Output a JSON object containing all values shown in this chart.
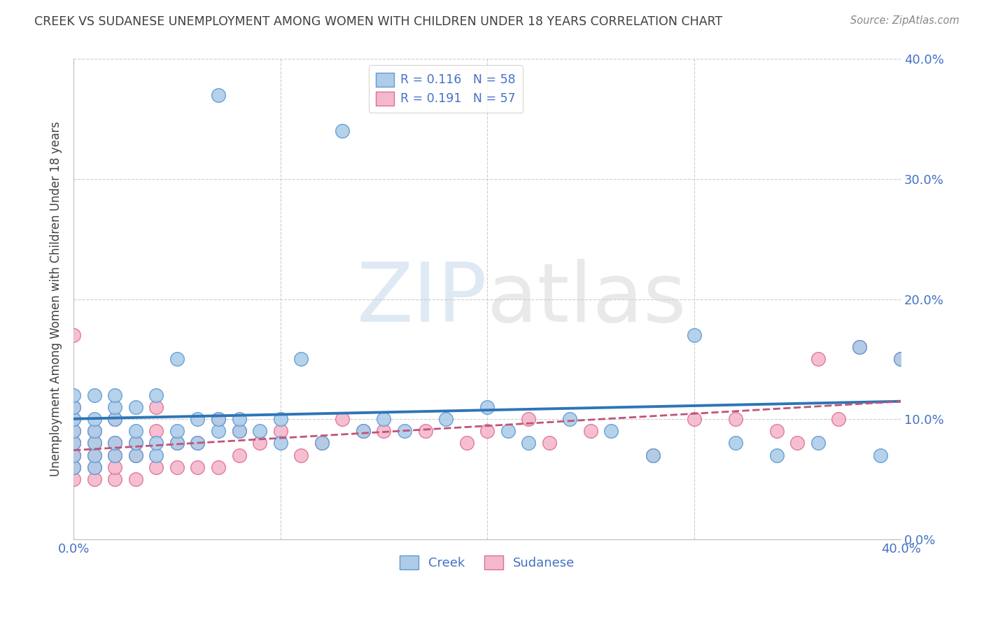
{
  "title": "CREEK VS SUDANESE UNEMPLOYMENT AMONG WOMEN WITH CHILDREN UNDER 18 YEARS CORRELATION CHART",
  "source": "Source: ZipAtlas.com",
  "ylabel": "Unemployment Among Women with Children Under 18 years",
  "xmin": 0.0,
  "xmax": 0.4,
  "ymin": 0.0,
  "ymax": 0.4,
  "xtick_positions": [
    0.0,
    0.4
  ],
  "xtick_labels": [
    "0.0%",
    "40.0%"
  ],
  "ytick_positions": [
    0.0,
    0.1,
    0.2,
    0.3,
    0.4
  ],
  "ytick_labels": [
    "0.0%",
    "10.0%",
    "20.0%",
    "30.0%",
    "40.0%"
  ],
  "creek_R": 0.116,
  "creek_N": 58,
  "sudanese_R": 0.191,
  "sudanese_N": 57,
  "creek_color": "#aecce8",
  "creek_edge_color": "#5b9bd5",
  "creek_line_color": "#2e75b6",
  "sudanese_color": "#f4b8cc",
  "sudanese_edge_color": "#e07090",
  "sudanese_line_color": "#c0547a",
  "background_color": "#ffffff",
  "grid_color": "#cccccc",
  "title_color": "#404040",
  "axis_label_color": "#404040",
  "tick_color": "#4472c4",
  "creek_x": [
    0.0,
    0.0,
    0.0,
    0.0,
    0.0,
    0.0,
    0.0,
    0.01,
    0.01,
    0.01,
    0.01,
    0.01,
    0.01,
    0.02,
    0.02,
    0.02,
    0.02,
    0.02,
    0.03,
    0.03,
    0.03,
    0.03,
    0.04,
    0.04,
    0.04,
    0.05,
    0.05,
    0.05,
    0.06,
    0.06,
    0.07,
    0.07,
    0.07,
    0.08,
    0.08,
    0.09,
    0.1,
    0.1,
    0.11,
    0.12,
    0.13,
    0.14,
    0.15,
    0.16,
    0.18,
    0.2,
    0.21,
    0.22,
    0.24,
    0.26,
    0.28,
    0.3,
    0.32,
    0.34,
    0.36,
    0.38,
    0.39,
    0.4
  ],
  "creek_y": [
    0.06,
    0.07,
    0.08,
    0.09,
    0.1,
    0.11,
    0.12,
    0.06,
    0.07,
    0.08,
    0.09,
    0.1,
    0.12,
    0.07,
    0.08,
    0.1,
    0.11,
    0.12,
    0.07,
    0.08,
    0.09,
    0.11,
    0.07,
    0.08,
    0.12,
    0.08,
    0.09,
    0.15,
    0.08,
    0.1,
    0.09,
    0.1,
    0.37,
    0.09,
    0.1,
    0.09,
    0.08,
    0.1,
    0.15,
    0.08,
    0.34,
    0.09,
    0.1,
    0.09,
    0.1,
    0.11,
    0.09,
    0.08,
    0.1,
    0.09,
    0.07,
    0.17,
    0.08,
    0.07,
    0.08,
    0.16,
    0.07,
    0.15
  ],
  "sudanese_x": [
    0.0,
    0.0,
    0.0,
    0.0,
    0.0,
    0.0,
    0.0,
    0.0,
    0.0,
    0.0,
    0.0,
    0.01,
    0.01,
    0.01,
    0.01,
    0.01,
    0.02,
    0.02,
    0.02,
    0.02,
    0.02,
    0.03,
    0.03,
    0.03,
    0.04,
    0.04,
    0.04,
    0.05,
    0.05,
    0.06,
    0.06,
    0.07,
    0.07,
    0.08,
    0.08,
    0.09,
    0.1,
    0.11,
    0.12,
    0.13,
    0.14,
    0.15,
    0.17,
    0.19,
    0.2,
    0.22,
    0.23,
    0.25,
    0.28,
    0.3,
    0.32,
    0.34,
    0.35,
    0.36,
    0.37,
    0.38,
    0.4
  ],
  "sudanese_y": [
    0.05,
    0.06,
    0.06,
    0.07,
    0.07,
    0.08,
    0.08,
    0.09,
    0.1,
    0.11,
    0.17,
    0.05,
    0.06,
    0.07,
    0.08,
    0.09,
    0.05,
    0.06,
    0.07,
    0.08,
    0.1,
    0.05,
    0.07,
    0.08,
    0.06,
    0.09,
    0.11,
    0.06,
    0.08,
    0.06,
    0.08,
    0.06,
    0.1,
    0.07,
    0.09,
    0.08,
    0.09,
    0.07,
    0.08,
    0.1,
    0.09,
    0.09,
    0.09,
    0.08,
    0.09,
    0.1,
    0.08,
    0.09,
    0.07,
    0.1,
    0.1,
    0.09,
    0.08,
    0.15,
    0.1,
    0.16,
    0.15
  ],
  "legend_label_creek": "Creek",
  "legend_label_sudanese": "Sudanese"
}
